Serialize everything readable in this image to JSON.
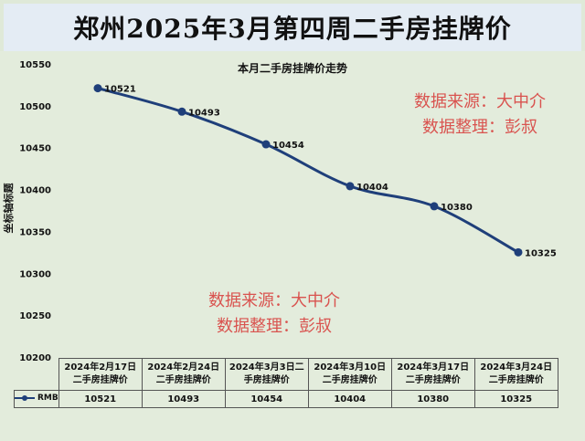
{
  "banner": {
    "title": "郑州2025年3月第四周二手房挂牌价"
  },
  "watermarks": [
    {
      "line1": "数据来源：大中介",
      "line2": "数据整理：彭叔"
    },
    {
      "line1": "数据来源：大中介",
      "line2": "数据整理：彭叔"
    }
  ],
  "chart_data": {
    "type": "line",
    "title": "本月二手房挂牌价走势",
    "ylabel": "坐标轴标题",
    "xlabel": "",
    "categories": [
      "2024年2月17日二手房挂牌价",
      "2024年2月24日二手房挂牌价",
      "2024年3月3日二手房挂牌价",
      "2024年3月10日二手房挂牌价",
      "2024年3月17日二手房挂牌价",
      "2024年3月24日二手房挂牌价"
    ],
    "category_lines": [
      [
        "2024年2月17日",
        "二手房挂牌价"
      ],
      [
        "2024年2月24日",
        "二手房挂牌价"
      ],
      [
        "2024年3月3日二",
        "手房挂牌价"
      ],
      [
        "2024年3月10日",
        "二手房挂牌价"
      ],
      [
        "2024年3月17日",
        "二手房挂牌价"
      ],
      [
        "2024年3月24日",
        "二手房挂牌价"
      ]
    ],
    "series": [
      {
        "name": "RMB",
        "values": [
          10521,
          10493,
          10454,
          10404,
          10380,
          10325
        ],
        "color": "#1f3f7a"
      }
    ],
    "ylim": [
      10200,
      10550
    ],
    "yticks": [
      10200,
      10250,
      10300,
      10350,
      10400,
      10450,
      10500,
      10550
    ],
    "data_labels": true,
    "legend": "table",
    "grid": false
  }
}
